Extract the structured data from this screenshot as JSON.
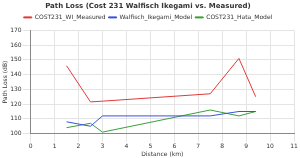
{
  "chart_data": {
    "type": "line",
    "title": "Path Loss (Cost 231 Walfisch Ikegami vs. Measured)",
    "x_label": "Distance (km)",
    "y_label": "Path Loss (dB)",
    "x": [
      1.5,
      2.5,
      3,
      7.5,
      8.7,
      9.4
    ],
    "series": [
      {
        "name": "COST231_WI_Measured",
        "color": "#e03a3a",
        "values": [
          146,
          121.5,
          122,
          127,
          151,
          125
        ]
      },
      {
        "name": "Walfisch_Ikegami_Model",
        "color": "#3a50e0",
        "values": [
          108,
          105,
          112,
          112,
          115,
          115
        ]
      },
      {
        "name": "COST231_Hata_Model",
        "color": "#3aa03a",
        "values": [
          104,
          107,
          101,
          116,
          112,
          115
        ]
      }
    ],
    "xlim": [
      0,
      11
    ],
    "xticks": [
      0,
      1,
      2,
      3,
      4,
      5,
      6,
      7,
      8,
      9,
      10,
      11
    ],
    "ylim": [
      100,
      170
    ],
    "yticks": [
      100,
      110,
      120,
      130,
      140,
      150,
      160,
      170
    ],
    "grid": true,
    "legend": "top"
  }
}
